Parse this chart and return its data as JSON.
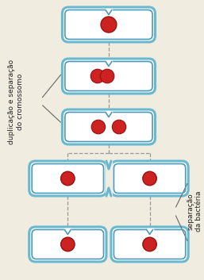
{
  "bg_color": "#f0ece0",
  "cell_fill": "#ffffff",
  "cell_border_outer": "#6ab8d0",
  "cell_border_inner": "#4a9ab8",
  "chrom_color": "#cc2222",
  "chrom_edge": "#991111",
  "connector_color": "#999999",
  "arrow_color": "#666666",
  "text_color": "#222222",
  "label_left": "duplicação e separação\ndo cromossomo",
  "label_right": "separação\nda bactéria",
  "font_size": 6.5
}
